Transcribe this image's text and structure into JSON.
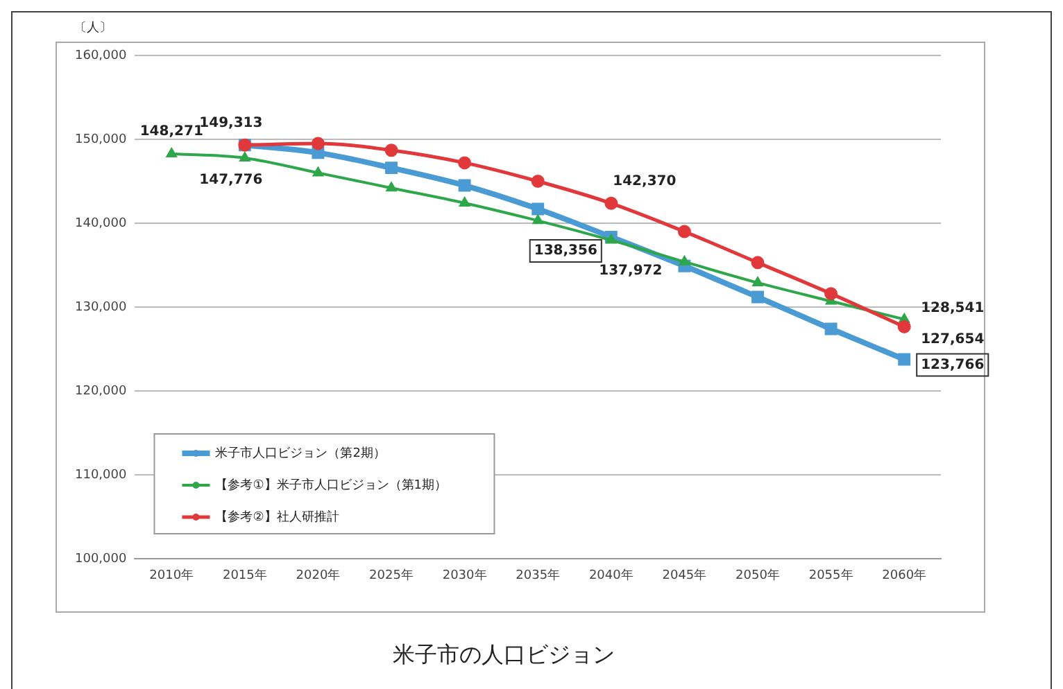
{
  "chart_data": {
    "type": "line",
    "title": "米子市の人口ビジョン",
    "ylabel": "〔人〕",
    "categories": [
      "2010年",
      "2015年",
      "2020年",
      "2025年",
      "2030年",
      "2035年",
      "2040年",
      "2045年",
      "2050年",
      "2055年",
      "2060年"
    ],
    "series": [
      {
        "name": "米子市人口ビジョン（第2期）",
        "color": "#4a9bd4",
        "marker": "square",
        "values": [
          null,
          149313,
          148400,
          146600,
          144500,
          141700,
          138356,
          134900,
          131200,
          127400,
          123766
        ],
        "value_labels": [
          null,
          null,
          null,
          null,
          null,
          null,
          "138,356",
          null,
          null,
          null,
          "123,766"
        ]
      },
      {
        "name": "【参考①】米子市人口ビジョン（第1期）",
        "color": "#2ea64a",
        "marker": "triangle",
        "values": [
          148271,
          147776,
          146000,
          144200,
          142400,
          140300,
          137972,
          135400,
          132900,
          130700,
          128541
        ],
        "value_labels": [
          "148,271",
          "147,776",
          null,
          null,
          null,
          null,
          "137,972",
          null,
          null,
          null,
          "128,541"
        ]
      },
      {
        "name": "【参考②】社人研推計",
        "color": "#e0383b",
        "marker": "circle",
        "values": [
          null,
          149313,
          149500,
          148700,
          147200,
          145000,
          142370,
          139000,
          135300,
          131600,
          127654
        ],
        "value_labels": [
          null,
          "149,313",
          null,
          null,
          null,
          null,
          "142,370",
          null,
          null,
          null,
          "127,654"
        ]
      }
    ],
    "ylim": [
      100000,
      160000
    ],
    "yticks": [
      {
        "value": 100000,
        "label": "100,000"
      },
      {
        "value": 110000,
        "label": "110,000"
      },
      {
        "value": 120000,
        "label": "120,000"
      },
      {
        "value": 130000,
        "label": "130,000"
      },
      {
        "value": 140000,
        "label": "140,000"
      },
      {
        "value": 150000,
        "label": "150,000"
      },
      {
        "value": 160000,
        "label": "160,000"
      }
    ],
    "grid": "y",
    "legend": "bottom left"
  }
}
